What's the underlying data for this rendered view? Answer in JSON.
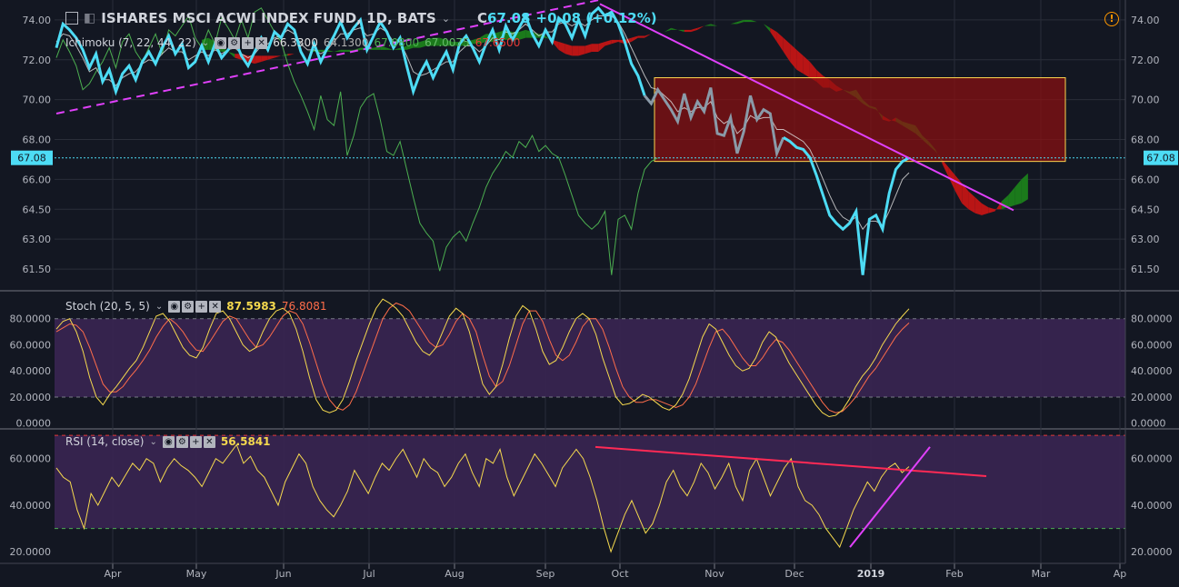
{
  "header": {
    "title": "ISHARES MSCI ACWI INDEX FUND, 1D, BATS",
    "close_prefix": "C",
    "close": "67.08",
    "change": "+0.08 (+0.12%)"
  },
  "colors": {
    "bg": "#131722",
    "grid": "#2a2e39",
    "price": "#4ddcf5",
    "price_inside_box": "#8a9aa8",
    "tenkan": "#e0e0e0",
    "chikou": "#4caf50",
    "cloud_bull": "#1b7f1b",
    "cloud_bear": "#c21515",
    "trend_magenta": "#e040fb",
    "box_fill": "#8e1010",
    "box_border": "#ffd54f",
    "stoch_k": "#f5d94e",
    "stoch_d": "#ff6d4a",
    "rsi_line": "#f5d94e",
    "rsi_trend_red": "#ff2a55",
    "band": "#3a2552",
    "last_price_tag": "#4ddcf5"
  },
  "indicators": {
    "ichimoku": {
      "label": "Ichimoku (7, 22, 44, 22)",
      "v1": "66.3300",
      "v2": "64.1300",
      "v3": "67.0800",
      "v4": "67.0075",
      "v5": "67.6500"
    },
    "stoch": {
      "label": "Stoch (20, 5, 5)",
      "k": "87.5983",
      "d": "76.8081"
    },
    "rsi": {
      "label": "RSI (14, close)",
      "value": "56.5841"
    }
  },
  "chart_data": [
    {
      "type": "line",
      "name": "price",
      "x_labels": [
        "Apr",
        "May",
        "Jun",
        "Jul",
        "Aug",
        "Sep",
        "Oct",
        "Nov",
        "Dec",
        "2019",
        "Feb",
        "Mar",
        "Ap"
      ],
      "yticks": [
        "74.00",
        "72.00",
        "70.00",
        "68.00",
        "66.00",
        "64.50",
        "63.00",
        "61.50"
      ],
      "ylim": [
        60.5,
        75
      ],
      "last_price": "67.08",
      "close": [
        72.6,
        73.8,
        73.5,
        73.1,
        72.5,
        71.6,
        72.3,
        70.9,
        71.5,
        70.4,
        71.3,
        71.7,
        71.0,
        71.9,
        72.4,
        71.8,
        72.6,
        73.2,
        72.3,
        72.8,
        71.6,
        71.9,
        72.7,
        71.9,
        72.8,
        72.1,
        72.5,
        73.0,
        72.2,
        71.7,
        72.4,
        73.1,
        72.5,
        73.4,
        73.1,
        73.8,
        73.5,
        72.4,
        71.8,
        72.8,
        71.9,
        72.6,
        73.2,
        73.9,
        73.1,
        73.6,
        74.0,
        72.5,
        73.2,
        73.9,
        73.4,
        72.6,
        73.1,
        71.7,
        70.4,
        71.3,
        71.9,
        71.1,
        71.8,
        72.4,
        71.5,
        72.8,
        73.2,
        72.6,
        71.9,
        72.8,
        73.5,
        72.5,
        73.7,
        73.0,
        73.6,
        74.2,
        73.3,
        72.7,
        73.5,
        72.9,
        74.1,
        73.8,
        73.1,
        74.0,
        73.2,
        74.3,
        74.6,
        74.2,
        74.4,
        73.8,
        72.9,
        71.8,
        71.2,
        70.2,
        69.8,
        70.5,
        70.0,
        69.5,
        68.9,
        70.3,
        69.1,
        69.9,
        69.4,
        70.6,
        68.3,
        68.2,
        69.1,
        67.3,
        68.4,
        70.2,
        69.0,
        69.5,
        69.3,
        67.3,
        68.1,
        67.9,
        67.6,
        67.5,
        67.1,
        66.2,
        65.2,
        64.2,
        63.8,
        63.5,
        63.8,
        64.4,
        61.2,
        64.0,
        64.2,
        63.5,
        65.3,
        66.5,
        66.9,
        67.08
      ],
      "tenkan": [
        72.9,
        73.3,
        73.2,
        72.7,
        72.1,
        71.4,
        71.6,
        71.0,
        71.0,
        70.7,
        71.1,
        71.3,
        71.4,
        71.8,
        72.0,
        71.9,
        72.3,
        72.6,
        72.4,
        72.4,
        72.0,
        72.2,
        72.4,
        72.2,
        72.5,
        72.3,
        72.5,
        72.6,
        72.3,
        72.1,
        72.3,
        72.7,
        72.8,
        73.1,
        73.2,
        73.5,
        73.3,
        72.8,
        72.5,
        72.5,
        72.3,
        72.5,
        72.9,
        73.3,
        73.3,
        73.5,
        73.6,
        73.2,
        73.3,
        73.6,
        73.4,
        72.9,
        72.9,
        72.2,
        71.4,
        71.2,
        71.3,
        71.5,
        71.7,
        71.9,
        71.9,
        72.4,
        72.7,
        72.7,
        72.4,
        72.7,
        73.1,
        73.0,
        73.4,
        73.3,
        73.5,
        73.8,
        73.5,
        73.2,
        73.4,
        73.4,
        73.8,
        73.9,
        73.7,
        73.9,
        73.7,
        74.0,
        74.2,
        74.2,
        74.2,
        73.9,
        73.3,
        72.6,
        71.9,
        71.2,
        70.6,
        70.5,
        70.2,
        69.9,
        69.4,
        69.6,
        69.4,
        69.6,
        69.6,
        69.9,
        69.1,
        68.8,
        69.0,
        68.3,
        68.6,
        69.2,
        69.0,
        69.1,
        69.1,
        68.5,
        68.5,
        68.3,
        68.1,
        67.9,
        67.5,
        66.8,
        66.0,
        65.2,
        64.5,
        64.1,
        63.9,
        64.1,
        63.5,
        63.9,
        63.9,
        63.7,
        64.4,
        65.2,
        66.0,
        66.33
      ],
      "chikou": [
        72.2,
        72.6,
        72.0,
        71.8,
        72.4,
        71.7,
        72.8,
        71.6,
        72.0,
        72.9,
        71.5,
        72.2,
        72.6,
        71.6,
        72.9,
        72.0,
        72.4,
        73.0,
        71.9,
        71.6,
        72.5,
        72.9,
        72.1,
        73.0,
        72.4,
        71.7,
        70.5,
        70.8,
        71.4,
        71.9,
        72.6,
        71.6,
        72.9,
        73.3,
        72.4,
        71.9,
        72.6,
        73.3,
        72.3,
        73.5,
        73.2,
        73.7,
        74.2,
        73.1,
        72.6,
        73.5,
        72.8,
        74.1,
        73.6,
        73.0,
        74.0,
        73.1,
        74.4,
        74.6,
        74.0,
        73.4,
        72.9,
        71.8,
        70.9,
        70.2,
        69.4,
        68.5,
        70.2,
        69.0,
        68.7,
        70.4,
        67.2,
        68.2,
        69.6,
        70.1,
        70.3,
        69.0,
        67.4,
        67.2,
        67.9,
        66.5,
        65.1,
        63.8,
        63.3,
        62.9,
        61.4,
        62.6,
        63.1,
        63.4,
        62.9,
        63.8,
        64.6,
        65.6,
        66.3,
        66.8,
        67.4,
        67.1,
        67.9,
        67.6,
        68.2,
        67.4,
        67.7,
        67.3,
        67.1,
        66.2,
        65.2,
        64.2,
        63.8,
        63.5,
        63.8,
        64.4,
        61.2,
        64.0,
        64.2,
        63.5,
        65.3,
        66.5,
        66.9,
        67.08
      ],
      "cloud": {
        "span_a": [
          73.0,
          73.1,
          72.9,
          72.7,
          72.4,
          72.1,
          72.0,
          71.9,
          71.8,
          71.9,
          72.0,
          72.1,
          72.2,
          72.2,
          72.3,
          72.3,
          72.4,
          72.5,
          72.5,
          72.5,
          72.4,
          72.5,
          72.5,
          72.5,
          72.6,
          72.6,
          72.6,
          72.7,
          72.6,
          72.5,
          72.6,
          72.7,
          72.8,
          72.9,
          73.0,
          73.1,
          73.1,
          73.0,
          72.9,
          72.9,
          72.9,
          73.0,
          73.1,
          73.3,
          73.3,
          73.4,
          73.5,
          73.4,
          73.4,
          73.5,
          73.4,
          73.3,
          73.2,
          72.9,
          72.5,
          72.3,
          72.2,
          72.2,
          72.3,
          72.4,
          72.4,
          72.7,
          72.8,
          72.9,
          72.8,
          72.9,
          73.1,
          73.1,
          73.3,
          73.3,
          73.4,
          73.6,
          73.5,
          73.4,
          73.4,
          73.5,
          73.7,
          73.8,
          73.7,
          73.8,
          73.8,
          73.9,
          74.0,
          74.0,
          73.9,
          73.8,
          73.4,
          72.9,
          72.4,
          71.9,
          71.5,
          71.3,
          71.1,
          70.9,
          70.6,
          70.6,
          70.4,
          70.5,
          70.4,
          70.5,
          70.0,
          69.7,
          69.6,
          69.0,
          68.9,
          69.1,
          68.9,
          68.8,
          68.7,
          68.2,
          67.9,
          67.5,
          66.8,
          66.1,
          65.4,
          64.8,
          64.5,
          64.3,
          64.2,
          64.3,
          64.4,
          64.9,
          65.2,
          65.6,
          66.0,
          66.3
        ],
        "span_b": [
          72.5,
          72.5,
          72.5,
          72.4,
          72.4,
          72.3,
          72.3,
          72.2,
          72.2,
          72.2,
          72.2,
          72.2,
          72.2,
          72.3,
          72.3,
          72.3,
          72.4,
          72.4,
          72.4,
          72.4,
          72.4,
          72.4,
          72.4,
          72.4,
          72.5,
          72.5,
          72.5,
          72.5,
          72.5,
          72.5,
          72.5,
          72.5,
          72.6,
          72.6,
          72.7,
          72.7,
          72.7,
          72.7,
          72.7,
          72.7,
          72.7,
          72.8,
          72.8,
          72.9,
          72.9,
          73.0,
          73.0,
          73.0,
          73.0,
          73.1,
          73.1,
          73.1,
          73.1,
          73.0,
          72.9,
          72.8,
          72.7,
          72.7,
          72.7,
          72.8,
          72.8,
          72.9,
          73.0,
          73.0,
          73.0,
          73.1,
          73.2,
          73.2,
          73.3,
          73.3,
          73.4,
          73.5,
          73.5,
          73.5,
          73.5,
          73.6,
          73.7,
          73.7,
          73.7,
          73.8,
          73.8,
          73.8,
          73.9,
          73.9,
          73.9,
          73.8,
          73.6,
          73.4,
          73.1,
          72.8,
          72.5,
          72.2,
          71.9,
          71.5,
          71.2,
          71.0,
          70.7,
          70.5,
          70.3,
          70.1,
          69.8,
          69.6,
          69.5,
          69.2,
          69.0,
          68.9,
          68.7,
          68.5,
          68.3,
          68.0,
          67.7,
          67.4,
          67.0,
          66.6,
          66.2,
          65.8,
          65.4,
          65.1,
          64.8,
          64.6,
          64.5,
          64.5,
          64.6,
          64.7,
          64.8,
          65.0
        ]
      },
      "annotations": {
        "rect": {
          "x_from": 0.535,
          "x_to": 1.0,
          "y_from": 66.9,
          "y_to": 71.1
        },
        "descending_trendline": [
          [
            74.8,
            64.45
          ]
        ],
        "ascending_trendline_dashed": [
          [
            69.3,
            75.2
          ]
        ]
      }
    },
    {
      "type": "line",
      "name": "stoch",
      "yticks": [
        "80.0000",
        "60.0000",
        "40.0000",
        "20.0000",
        "0.0000"
      ],
      "ylim": [
        0,
        100
      ],
      "band": [
        20,
        80
      ],
      "k": [
        72,
        78,
        80,
        70,
        55,
        35,
        20,
        14,
        22,
        28,
        35,
        42,
        48,
        58,
        70,
        82,
        84,
        78,
        68,
        58,
        52,
        50,
        58,
        72,
        84,
        86,
        80,
        70,
        60,
        55,
        58,
        70,
        80,
        86,
        88,
        84,
        72,
        55,
        35,
        18,
        10,
        8,
        10,
        18,
        32,
        48,
        62,
        76,
        88,
        95,
        92,
        88,
        82,
        72,
        62,
        55,
        52,
        58,
        70,
        82,
        88,
        84,
        70,
        50,
        30,
        22,
        28,
        45,
        65,
        82,
        90,
        86,
        72,
        55,
        45,
        48,
        58,
        70,
        80,
        84,
        80,
        68,
        50,
        35,
        20,
        14,
        15,
        18,
        22,
        20,
        16,
        12,
        10,
        14,
        22,
        34,
        50,
        66,
        76,
        72,
        62,
        52,
        44,
        40,
        42,
        50,
        62,
        70,
        66,
        56,
        46,
        38,
        30,
        22,
        14,
        8,
        5,
        6,
        10,
        18,
        28,
        36,
        42,
        50,
        60,
        68,
        76,
        82,
        87.6
      ],
      "d": [
        70,
        73,
        76,
        75,
        70,
        58,
        44,
        30,
        24,
        24,
        28,
        35,
        41,
        48,
        56,
        66,
        74,
        80,
        76,
        70,
        62,
        56,
        55,
        62,
        70,
        78,
        82,
        80,
        72,
        64,
        58,
        60,
        66,
        74,
        82,
        86,
        84,
        76,
        62,
        46,
        30,
        18,
        12,
        10,
        14,
        24,
        38,
        52,
        66,
        80,
        88,
        92,
        90,
        86,
        78,
        70,
        62,
        58,
        60,
        68,
        78,
        84,
        80,
        70,
        52,
        36,
        28,
        32,
        44,
        60,
        76,
        86,
        86,
        78,
        64,
        52,
        48,
        52,
        62,
        74,
        80,
        80,
        72,
        58,
        42,
        28,
        20,
        16,
        16,
        18,
        18,
        16,
        14,
        12,
        14,
        20,
        30,
        44,
        58,
        70,
        72,
        66,
        58,
        50,
        44,
        44,
        50,
        58,
        64,
        62,
        56,
        48,
        40,
        32,
        24,
        16,
        10,
        8,
        9,
        14,
        20,
        28,
        36,
        42,
        50,
        58,
        66,
        72,
        76.8
      ]
    },
    {
      "type": "line",
      "name": "rsi",
      "yticks": [
        "60.0000",
        "40.0000",
        "20.0000"
      ],
      "ylim": [
        15,
        72
      ],
      "band": [
        30,
        70
      ],
      "values": [
        56,
        52,
        50,
        38,
        30,
        45,
        40,
        46,
        52,
        48,
        53,
        58,
        55,
        60,
        58,
        50,
        56,
        60,
        57,
        55,
        52,
        48,
        54,
        60,
        58,
        62,
        66,
        58,
        61,
        55,
        52,
        46,
        40,
        50,
        56,
        62,
        58,
        48,
        42,
        38,
        35,
        40,
        46,
        55,
        50,
        45,
        52,
        58,
        55,
        60,
        64,
        58,
        52,
        60,
        56,
        54,
        48,
        52,
        58,
        62,
        54,
        48,
        60,
        58,
        64,
        52,
        44,
        50,
        56,
        62,
        58,
        53,
        48,
        56,
        60,
        64,
        60,
        52,
        42,
        30,
        20,
        28,
        36,
        42,
        35,
        28,
        32,
        40,
        50,
        55,
        48,
        44,
        50,
        58,
        54,
        47,
        52,
        58,
        48,
        42,
        55,
        60,
        52,
        44,
        50,
        56,
        60,
        48,
        42,
        40,
        36,
        30,
        26,
        22,
        30,
        38,
        44,
        50,
        46,
        52,
        56,
        58,
        54,
        56.6
      ],
      "trend_red": [
        [
          65,
          52.5
        ]
      ],
      "trend_magenta": [
        [
          22,
          65
        ]
      ]
    }
  ]
}
